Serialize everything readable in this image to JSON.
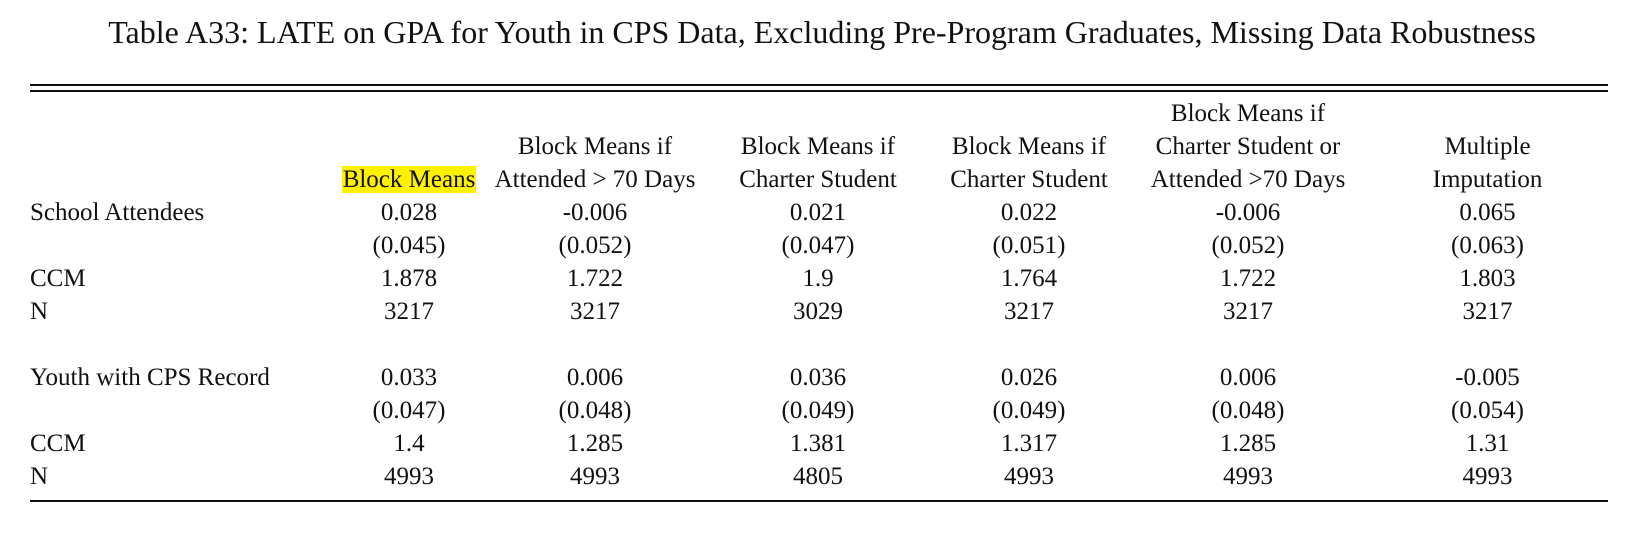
{
  "caption": "Table A33: LATE on GPA for Youth in CPS Data, Excluding Pre-Program Graduates, Missing Data Robustness",
  "columns": [
    {
      "lines": [
        "",
        "",
        "Block Means"
      ],
      "highlighted": true
    },
    {
      "lines": [
        "",
        "Block Means if",
        "Attended > 70 Days"
      ],
      "highlighted": false
    },
    {
      "lines": [
        "",
        "Block Means if",
        "Charter Student"
      ],
      "highlighted": false
    },
    {
      "lines": [
        "",
        "Block Means if",
        "Charter Student"
      ],
      "highlighted": false
    },
    {
      "lines": [
        "Block Means if",
        "Charter Student or",
        "Attended >70 Days"
      ],
      "highlighted": false
    },
    {
      "lines": [
        "",
        "Multiple",
        "Imputation"
      ],
      "highlighted": false
    }
  ],
  "highlight_color": "#fff200",
  "panels": [
    {
      "rows": [
        {
          "label": "School Attendees",
          "values": [
            "0.028",
            "-0.006",
            "0.021",
            "0.022",
            "-0.006",
            "0.065"
          ]
        },
        {
          "label": "",
          "values": [
            "(0.045)",
            "(0.052)",
            "(0.047)",
            "(0.051)",
            "(0.052)",
            "(0.063)"
          ]
        },
        {
          "label": "CCM",
          "values": [
            "1.878",
            "1.722",
            "1.9",
            "1.764",
            "1.722",
            "1.803"
          ]
        },
        {
          "label": "N",
          "values": [
            "3217",
            "3217",
            "3029",
            "3217",
            "3217",
            "3217"
          ]
        }
      ]
    },
    {
      "rows": [
        {
          "label": "Youth with CPS Record",
          "values": [
            "0.033",
            "0.006",
            "0.036",
            "0.026",
            "0.006",
            "-0.005"
          ]
        },
        {
          "label": "",
          "values": [
            "(0.047)",
            "(0.048)",
            "(0.049)",
            "(0.049)",
            "(0.048)",
            "(0.054)"
          ]
        },
        {
          "label": "CCM",
          "values": [
            "1.4",
            "1.285",
            "1.381",
            "1.317",
            "1.285",
            "1.31"
          ]
        },
        {
          "label": "N",
          "values": [
            "4993",
            "4993",
            "4805",
            "4993",
            "4993",
            "4993"
          ]
        }
      ]
    }
  ]
}
